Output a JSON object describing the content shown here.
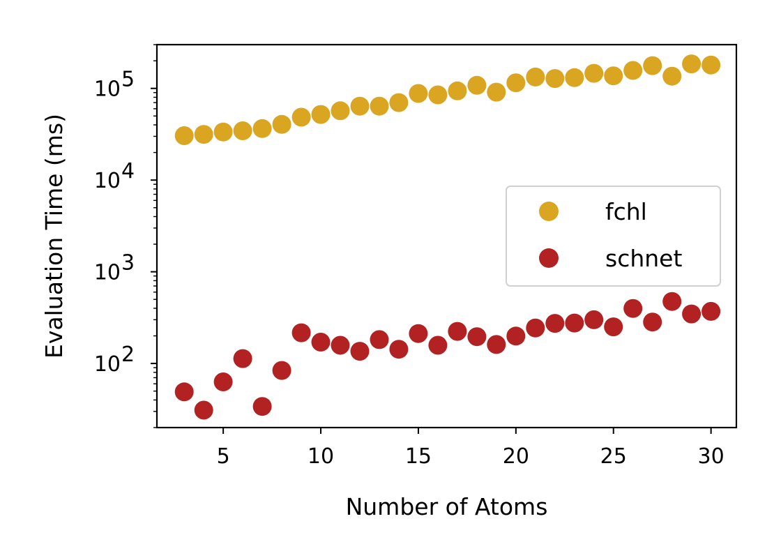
{
  "chart_data": {
    "type": "scatter",
    "xlabel": "Number of Atoms",
    "ylabel": "Evaluation Time (ms)",
    "y_scale": "log",
    "xlim": [
      1.6,
      31.3
    ],
    "ylim": [
      20,
      300000
    ],
    "x_ticks": [
      5,
      10,
      15,
      20,
      25,
      30
    ],
    "x_tick_labels": [
      "5",
      "10",
      "15",
      "20",
      "25",
      "30"
    ],
    "y_ticks": [
      100,
      1000,
      10000,
      100000
    ],
    "y_tick_labels": [
      {
        "base": "10",
        "exp": "2"
      },
      {
        "base": "10",
        "exp": "3"
      },
      {
        "base": "10",
        "exp": "4"
      },
      {
        "base": "10",
        "exp": "5"
      }
    ],
    "grid": false,
    "legend_position": "center-right",
    "series": [
      {
        "name": "fchl",
        "color": "#DAA520",
        "x": [
          3,
          4,
          5,
          6,
          7,
          8,
          9,
          10,
          11,
          12,
          13,
          14,
          15,
          16,
          17,
          18,
          19,
          20,
          21,
          22,
          23,
          24,
          25,
          26,
          27,
          28,
          29,
          30
        ],
        "y": [
          30500,
          31500,
          33500,
          34500,
          36500,
          40500,
          48500,
          52000,
          57000,
          64000,
          64000,
          70000,
          88000,
          85000,
          94000,
          108000,
          91000,
          115000,
          133000,
          128000,
          131000,
          146000,
          137000,
          157000,
          177000,
          136000,
          185000,
          180000
        ]
      },
      {
        "name": "schnet",
        "color": "#B22222",
        "x": [
          3,
          4,
          5,
          6,
          7,
          8,
          9,
          10,
          11,
          12,
          13,
          14,
          15,
          16,
          17,
          18,
          19,
          20,
          21,
          22,
          23,
          24,
          25,
          26,
          27,
          28,
          29,
          30
        ],
        "y": [
          49,
          31,
          63,
          113,
          34,
          84,
          216,
          171,
          158,
          136,
          182,
          143,
          212,
          158,
          224,
          196,
          161,
          199,
          244,
          274,
          276,
          300,
          251,
          398,
          283,
          475,
          347,
          370
        ]
      }
    ]
  }
}
